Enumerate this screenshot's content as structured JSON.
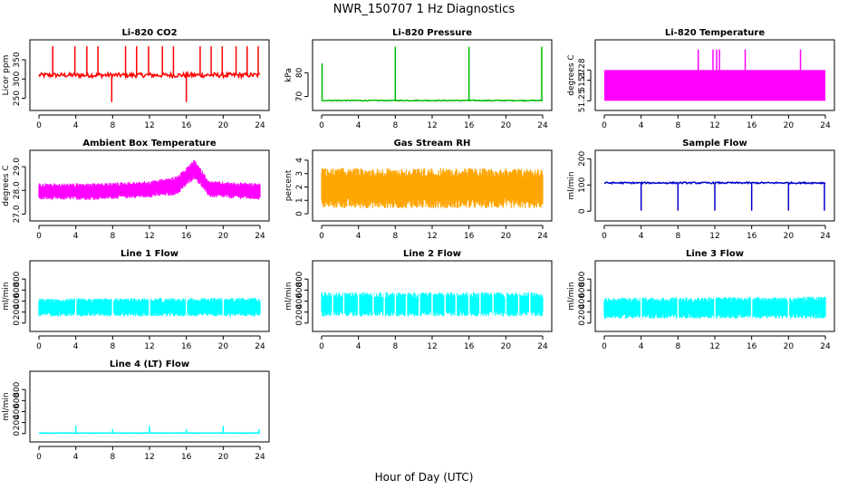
{
  "title": "NWR_150707  1 Hz Diagnostics",
  "xlabel": "Hour of Day (UTC)",
  "chart_data": [
    {
      "type": "line",
      "title": "Li-820 CO2",
      "ylabel": "Licor ppm",
      "color": "#ff0000",
      "xlim": [
        0,
        24
      ],
      "ylim": [
        230,
        390
      ],
      "xticks": [
        0,
        4,
        8,
        12,
        16,
        20,
        24
      ],
      "yticks": [
        250,
        300,
        350
      ],
      "pattern": "noise",
      "baseline": 310,
      "noise": 6,
      "spikes": [
        {
          "x": 1.5,
          "y": 385
        },
        {
          "x": 3.9,
          "y": 385
        },
        {
          "x": 5.2,
          "y": 385
        },
        {
          "x": 6.4,
          "y": 385
        },
        {
          "x": 7.9,
          "y": 240
        },
        {
          "x": 9.4,
          "y": 385
        },
        {
          "x": 10.6,
          "y": 385
        },
        {
          "x": 11.9,
          "y": 385
        },
        {
          "x": 13.4,
          "y": 385
        },
        {
          "x": 14.6,
          "y": 385
        },
        {
          "x": 16.0,
          "y": 240
        },
        {
          "x": 17.5,
          "y": 385
        },
        {
          "x": 18.7,
          "y": 385
        },
        {
          "x": 19.9,
          "y": 385
        },
        {
          "x": 21.4,
          "y": 385
        },
        {
          "x": 22.6,
          "y": 385
        },
        {
          "x": 23.8,
          "y": 385
        }
      ]
    },
    {
      "type": "line",
      "title": "Li-820 Pressure",
      "ylabel": "kPa",
      "color": "#00bb00",
      "xlim": [
        0,
        24
      ],
      "ylim": [
        66,
        92
      ],
      "xticks": [
        0,
        4,
        8,
        12,
        16,
        20,
        24
      ],
      "yticks": [
        70,
        80
      ],
      "pattern": "flat",
      "baseline": 68.3,
      "noise": 0.2,
      "spikes": [
        {
          "x": 0.05,
          "y": 84
        },
        {
          "x": 8.0,
          "y": 91
        },
        {
          "x": 16.0,
          "y": 91
        },
        {
          "x": 23.9,
          "y": 91
        }
      ]
    },
    {
      "type": "line",
      "title": "Li-820 Temperature",
      "ylabel": "degrees C",
      "color": "#ff00ff",
      "xlim": [
        0,
        24
      ],
      "ylim": [
        51.245,
        51.305
      ],
      "xticks": [
        0,
        4,
        8,
        12,
        16,
        20,
        24
      ],
      "yticks": [
        51.25,
        51.27,
        51.28
      ],
      "ytick_labels": [
        "51.25",
        "51.27",
        "51.28"
      ],
      "pattern": "band",
      "band": [
        51.25,
        51.28
      ],
      "spikes": [
        {
          "x": 10.2,
          "y": 51.3
        },
        {
          "x": 11.8,
          "y": 51.3
        },
        {
          "x": 12.2,
          "y": 51.3
        },
        {
          "x": 12.5,
          "y": 51.3
        },
        {
          "x": 15.3,
          "y": 51.3
        },
        {
          "x": 21.3,
          "y": 51.3
        }
      ]
    },
    {
      "type": "line",
      "title": "Ambient Box Temperature",
      "ylabel": "degrees C",
      "color": "#ff00ff",
      "xlim": [
        0,
        24
      ],
      "ylim": [
        26.9,
        29.5
      ],
      "xticks": [
        0,
        4,
        8,
        12,
        16,
        20,
        24
      ],
      "yticks": [
        27.0,
        28.0,
        29.0
      ],
      "ytick_labels": [
        "27.0",
        "28.0",
        "29.0"
      ],
      "pattern": "envelope",
      "low": [
        [
          0,
          27.6
        ],
        [
          6,
          27.6
        ],
        [
          12,
          27.7
        ],
        [
          15,
          27.8
        ],
        [
          16.9,
          28.5
        ],
        [
          18.5,
          27.7
        ],
        [
          24,
          27.6
        ]
      ],
      "high": [
        [
          0,
          28.3
        ],
        [
          6,
          28.3
        ],
        [
          12,
          28.4
        ],
        [
          15,
          28.6
        ],
        [
          16.9,
          29.3
        ],
        [
          18.5,
          28.4
        ],
        [
          24,
          28.3
        ]
      ]
    },
    {
      "type": "line",
      "title": "Gas Stream RH",
      "ylabel": "percent",
      "color": "#ffa500",
      "xlim": [
        0,
        24
      ],
      "ylim": [
        -0.2,
        4.4
      ],
      "xticks": [
        0,
        4,
        8,
        12,
        16,
        20,
        24
      ],
      "yticks": [
        0,
        1,
        2,
        3,
        4
      ],
      "pattern": "envelope",
      "low": [
        [
          0,
          0.4
        ],
        [
          24,
          0.4
        ]
      ],
      "high": [
        [
          0,
          3.4
        ],
        [
          24,
          3.4
        ]
      ]
    },
    {
      "type": "line",
      "title": "Sample Flow",
      "ylabel": "ml/min",
      "color": "#0000cc",
      "xlim": [
        0,
        24
      ],
      "ylim": [
        -20,
        215
      ],
      "xticks": [
        0,
        4,
        8,
        12,
        16,
        20,
        24
      ],
      "yticks": [
        0,
        100,
        200
      ],
      "pattern": "flat",
      "baseline": 108,
      "noise": 3,
      "spikes": [
        {
          "x": 4.0,
          "y": 2
        },
        {
          "x": 8.0,
          "y": 2
        },
        {
          "x": 12.0,
          "y": 2
        },
        {
          "x": 16.0,
          "y": 2
        },
        {
          "x": 20.0,
          "y": 2
        },
        {
          "x": 23.9,
          "y": 2
        }
      ]
    },
    {
      "type": "line",
      "title": "Line 1 Flow",
      "ylabel": "ml/min",
      "color": "#00ffff",
      "xlim": [
        0,
        24
      ],
      "ylim": [
        -70,
        1050
      ],
      "xticks": [
        0,
        4,
        8,
        12,
        16,
        20,
        24
      ],
      "yticks": [
        0,
        200,
        400,
        600,
        800
      ],
      "pattern": "envelope",
      "low": [
        [
          0,
          120
        ],
        [
          24,
          120
        ]
      ],
      "high": [
        [
          0,
          450
        ],
        [
          24,
          460
        ]
      ],
      "gaps": [
        4.0,
        8.0,
        12.0,
        16.0,
        20.0
      ]
    },
    {
      "type": "line",
      "title": "Line 2 Flow",
      "ylabel": "ml/min",
      "color": "#00ffff",
      "xlim": [
        0,
        24
      ],
      "ylim": [
        -70,
        1050
      ],
      "xticks": [
        0,
        4,
        8,
        12,
        16,
        20,
        24
      ],
      "yticks": [
        0,
        200,
        400,
        600,
        800
      ],
      "pattern": "envelope",
      "low": [
        [
          0,
          120
        ],
        [
          24,
          120
        ]
      ],
      "high": [
        [
          0,
          560
        ],
        [
          24,
          560
        ]
      ],
      "gaps": [
        1.2,
        2.4,
        4.0,
        5.6,
        6.8,
        8.0,
        9.2,
        10.6,
        12.0,
        13.4,
        14.6,
        16.0,
        17.2,
        18.6,
        20.0,
        21.4,
        22.6
      ]
    },
    {
      "type": "line",
      "title": "Line 3 Flow",
      "ylabel": "ml/min",
      "color": "#00ffff",
      "xlim": [
        0,
        24
      ],
      "ylim": [
        -70,
        1050
      ],
      "xticks": [
        0,
        4,
        8,
        12,
        16,
        20,
        24
      ],
      "yticks": [
        0,
        200,
        400,
        600,
        800
      ],
      "pattern": "envelope",
      "low": [
        [
          0,
          80
        ],
        [
          24,
          80
        ]
      ],
      "high": [
        [
          0,
          460
        ],
        [
          24,
          480
        ]
      ],
      "gaps": [
        4.0,
        8.0,
        12.0,
        16.0,
        20.0
      ]
    },
    {
      "type": "line",
      "title": "Line 4 (LT) Flow",
      "ylabel": "ml/min",
      "color": "#00ffff",
      "xlim": [
        0,
        24
      ],
      "ylim": [
        -70,
        1050
      ],
      "xticks": [
        0,
        4,
        8,
        12,
        16,
        20,
        24
      ],
      "yticks": [
        0,
        200,
        400,
        600,
        800
      ],
      "pattern": "flat",
      "baseline": 10,
      "noise": 2,
      "spikes": [
        {
          "x": 4.0,
          "y": 140
        },
        {
          "x": 8.0,
          "y": 80
        },
        {
          "x": 12.0,
          "y": 140
        },
        {
          "x": 16.0,
          "y": 80
        },
        {
          "x": 20.0,
          "y": 140
        },
        {
          "x": 23.9,
          "y": 80
        }
      ]
    }
  ]
}
